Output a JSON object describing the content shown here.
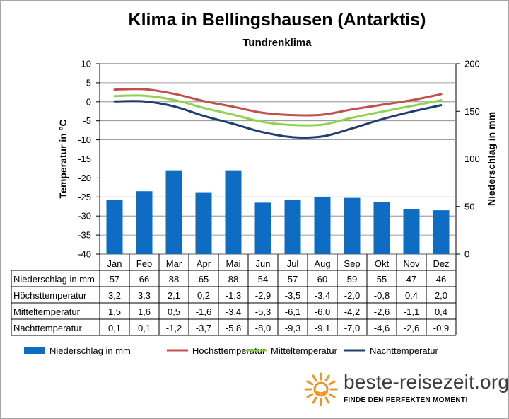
{
  "header": {
    "title": "Klima in Bellingshausen (Antarktis)",
    "subtitle": "Tundrenklima"
  },
  "chart_data": {
    "type": "bar+line",
    "categories": [
      "Jan",
      "Feb",
      "Mar",
      "Apr",
      "Mai",
      "Jun",
      "Jul",
      "Aug",
      "Sep",
      "Okt",
      "Nov",
      "Dez"
    ],
    "y_left": {
      "label": "Temperatur in °C",
      "range": [
        -40,
        10
      ],
      "ticks": [
        10,
        5,
        0,
        -5,
        -10,
        -15,
        -20,
        -25,
        -30,
        -35,
        -40
      ]
    },
    "y_right": {
      "label": "Niederschlag in mm",
      "range": [
        0,
        200
      ],
      "ticks": [
        200,
        150,
        100,
        50,
        0
      ]
    },
    "grid": true,
    "legend_position": "bottom",
    "series": [
      {
        "name": "Niederschlag in mm",
        "kind": "bar",
        "axis": "right",
        "color": "#0e6dc2",
        "values": [
          57,
          66,
          88,
          65,
          88,
          54,
          57,
          60,
          59,
          55,
          47,
          46
        ],
        "labels": [
          "57",
          "66",
          "88",
          "65",
          "88",
          "54",
          "57",
          "60",
          "59",
          "55",
          "47",
          "46"
        ]
      },
      {
        "name": "Höchsttemperatur",
        "kind": "line",
        "axis": "left",
        "color": "#c0504d",
        "values": [
          3.2,
          3.3,
          2.1,
          0.2,
          -1.3,
          -2.9,
          -3.5,
          -3.4,
          -2.0,
          -0.8,
          0.4,
          2.0
        ],
        "labels": [
          "3,2",
          "3,3",
          "2,1",
          "0,2",
          "-1,3",
          "-2,9",
          "-3,5",
          "-3,4",
          "-2,0",
          "-0,8",
          "0,4",
          "2,0"
        ]
      },
      {
        "name": "Mitteltemperatur",
        "kind": "line",
        "axis": "left",
        "color": "#92d050",
        "values": [
          1.5,
          1.6,
          0.5,
          -1.6,
          -3.4,
          -5.3,
          -6.1,
          -6.0,
          -4.2,
          -2.6,
          -1.1,
          0.4
        ],
        "labels": [
          "1,5",
          "1,6",
          "0,5",
          "-1,6",
          "-3,4",
          "-5,3",
          "-6,1",
          "-6,0",
          "-4,2",
          "-2,6",
          "-1,1",
          "0,4"
        ]
      },
      {
        "name": "Nachttemperatur",
        "kind": "line",
        "axis": "left",
        "color": "#1f3e6e",
        "values": [
          0.1,
          0.1,
          -1.2,
          -3.7,
          -5.8,
          -8.0,
          -9.3,
          -9.1,
          -7.0,
          -4.6,
          -2.6,
          -0.9
        ],
        "labels": [
          "0,1",
          "0,1",
          "-1,2",
          "-3,7",
          "-5,8",
          "-8,0",
          "-9,3",
          "-9,1",
          "-7,0",
          "-4,6",
          "-2,6",
          "-0,9"
        ]
      }
    ]
  },
  "logo": {
    "name": "beste-reisezeit.org",
    "tagline": "FINDE DEN PERFEKTEN MOMENT!",
    "accent": "#f39323"
  }
}
